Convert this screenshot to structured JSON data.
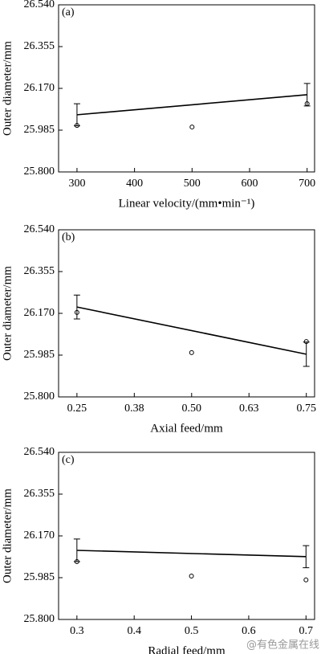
{
  "chart_data": [
    {
      "type": "scatter",
      "panel_label": "(a)",
      "x_label": "Linear velocity/(mm•min⁻¹)",
      "y_label": "Outer diameter/mm",
      "xlim": [
        268,
        713
      ],
      "xticks": [
        300,
        400,
        500,
        600,
        700
      ],
      "ylim": [
        25.8,
        26.54
      ],
      "yticks": [
        {
          "value": 25.8,
          "label": "25.800"
        },
        25.985,
        {
          "value": 26.17,
          "label": "26.170"
        },
        26.355,
        {
          "value": 26.54,
          "label": "26.540"
        }
      ],
      "series": [
        {
          "type": "scatter",
          "color": "#000000",
          "x": [
            300,
            500,
            700
          ],
          "values": [
            26.006,
            25.999,
            26.102
          ]
        },
        {
          "type": "line",
          "color": "#000000",
          "x": [
            300,
            700
          ],
          "values": [
            26.053,
            26.142
          ],
          "errors": [
            0.049,
            0.05
          ]
        }
      ]
    },
    {
      "type": "scatter",
      "panel_label": "(b)",
      "x_label": "Axial feed/mm",
      "y_label": "Outer diameter/mm",
      "xlim": [
        0.21,
        0.768
      ],
      "xticks": [
        0.25,
        {
          "value": 0.375,
          "label": "0.38"
        },
        {
          "value": 0.5,
          "label": "0.50"
        },
        {
          "value": 0.625,
          "label": "0.63"
        },
        0.75
      ],
      "ylim": [
        25.8,
        26.54
      ],
      "yticks": [
        {
          "value": 25.8,
          "label": "25.800"
        },
        25.985,
        {
          "value": 26.17,
          "label": "26.170"
        },
        26.355,
        {
          "value": 26.54,
          "label": "26.540"
        }
      ],
      "series": [
        {
          "type": "scatter",
          "color": "#000000",
          "x": [
            0.25,
            0.5,
            0.75
          ],
          "values": [
            26.174,
            25.996,
            26.045
          ]
        },
        {
          "type": "line",
          "color": "#000000",
          "x": [
            0.25,
            0.75
          ],
          "values": [
            26.198,
            25.989
          ],
          "errors": [
            0.053,
            0.054
          ]
        }
      ]
    },
    {
      "type": "scatter",
      "panel_label": "(c)",
      "x_label": "Radial feed/mm",
      "y_label": "Outer diameter/mm",
      "xlim": [
        0.268,
        0.715
      ],
      "xticks": [
        0.3,
        0.4,
        0.5,
        0.6,
        0.7
      ],
      "ylim": [
        25.8,
        26.54
      ],
      "yticks": [
        {
          "value": 25.8,
          "label": "25.800"
        },
        25.985,
        {
          "value": 26.17,
          "label": "26.170"
        },
        26.355,
        {
          "value": 26.54,
          "label": "26.540"
        }
      ],
      "series": [
        {
          "type": "scatter",
          "color": "#000000",
          "x": [
            0.3,
            0.5,
            0.7
          ],
          "values": [
            26.056,
            25.992,
            25.975
          ]
        },
        {
          "type": "line",
          "color": "#000000",
          "x": [
            0.3,
            0.7
          ],
          "values": [
            26.106,
            26.078
          ],
          "errors": [
            0.05,
            0.049
          ]
        }
      ]
    }
  ],
  "watermark": "@有色金属在线"
}
